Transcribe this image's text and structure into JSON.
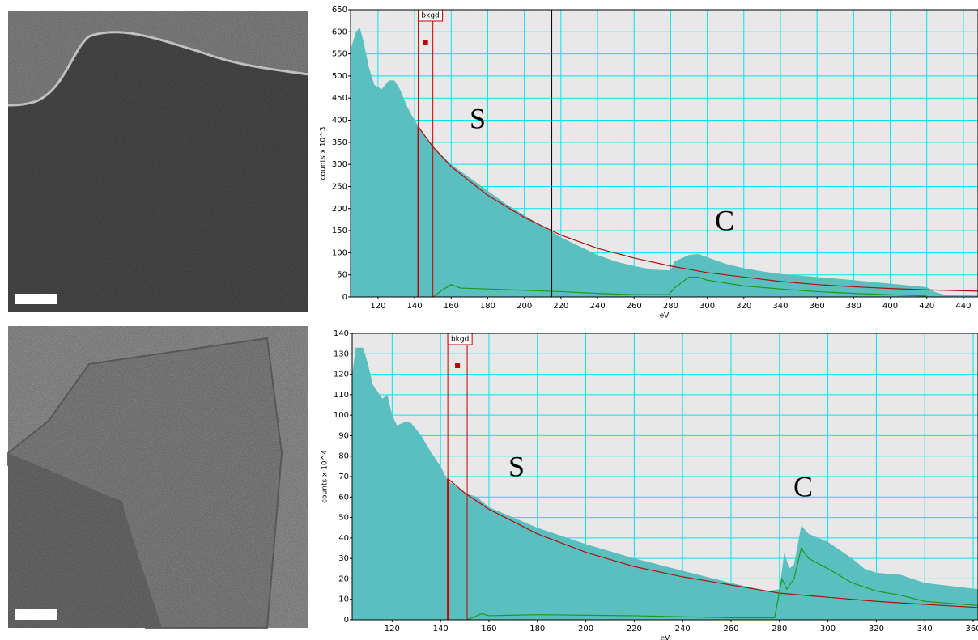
{
  "chart_data": [
    {
      "type": "area",
      "xlabel": "eV",
      "ylabel": "counts x 10^3",
      "xlim": [
        105,
        448
      ],
      "xticks": [
        120,
        140,
        160,
        180,
        200,
        220,
        240,
        260,
        280,
        300,
        320,
        340,
        360,
        380,
        400,
        420,
        440
      ],
      "ylim": [
        0,
        650
      ],
      "yticks": [
        0,
        50,
        100,
        150,
        200,
        250,
        300,
        350,
        400,
        450,
        500,
        550,
        600,
        650
      ],
      "grid": true,
      "bkgd_label": "bkgd",
      "bkgd_window": [
        142,
        150
      ],
      "cursor_x": 215,
      "annotations": [
        "S",
        "C"
      ],
      "series": [
        {
          "style": "area",
          "color": "#5bbfbf",
          "x": [
            105,
            108,
            110,
            112,
            115,
            118,
            122,
            126,
            129,
            132,
            136,
            140,
            145,
            150,
            155,
            160,
            170,
            180,
            190,
            200,
            210,
            220,
            230,
            240,
            250,
            260,
            270,
            280,
            282,
            290,
            295,
            300,
            310,
            320,
            330,
            340,
            360,
            380,
            400,
            420,
            425,
            430,
            448
          ],
          "values": [
            560,
            600,
            610,
            580,
            520,
            480,
            470,
            490,
            490,
            470,
            430,
            400,
            370,
            340,
            320,
            300,
            270,
            240,
            210,
            185,
            160,
            135,
            115,
            95,
            80,
            70,
            62,
            60,
            80,
            95,
            97,
            90,
            75,
            65,
            58,
            52,
            45,
            38,
            30,
            22,
            10,
            5,
            3
          ]
        },
        {
          "style": "line",
          "color": "#b01010",
          "x": [
            142,
            150,
            160,
            180,
            200,
            220,
            240,
            260,
            280,
            300,
            320,
            340,
            360,
            380,
            400,
            420,
            448
          ],
          "values": [
            385,
            340,
            295,
            230,
            180,
            140,
            110,
            88,
            70,
            55,
            45,
            35,
            28,
            23,
            19,
            16,
            13
          ]
        },
        {
          "style": "line",
          "color": "#1a9a1a",
          "x": [
            150,
            155,
            160,
            165,
            180,
            200,
            220,
            240,
            260,
            279,
            282,
            290,
            295,
            300,
            320,
            340,
            360,
            380,
            400,
            420
          ],
          "values": [
            0,
            15,
            28,
            20,
            18,
            15,
            12,
            8,
            5,
            5,
            20,
            45,
            45,
            38,
            25,
            18,
            12,
            8,
            5,
            2
          ]
        }
      ]
    },
    {
      "type": "area",
      "xlabel": "eV",
      "ylabel": "counts x 10^4",
      "xlim": [
        103.5,
        362
      ],
      "xticks": [
        120,
        140,
        160,
        180,
        200,
        220,
        240,
        260,
        280,
        300,
        320,
        340,
        360
      ],
      "ylim": [
        0,
        140
      ],
      "yticks": [
        0,
        10,
        20,
        30,
        40,
        50,
        60,
        70,
        80,
        90,
        100,
        110,
        120,
        130,
        140
      ],
      "grid": true,
      "bkgd_label": "bkgd",
      "bkgd_window": [
        143,
        151
      ],
      "annotations": [
        "S",
        "C"
      ],
      "series": [
        {
          "style": "area",
          "color": "#5bbfbf",
          "x": [
            103.5,
            105,
            108,
            110,
            112,
            116,
            118,
            120,
            122,
            126,
            128,
            132,
            136,
            140,
            143,
            150,
            155,
            160,
            180,
            200,
            220,
            240,
            260,
            275,
            280,
            282,
            284,
            286,
            289,
            292,
            300,
            310,
            315,
            320,
            330,
            340,
            362
          ],
          "values": [
            120,
            133,
            133,
            125,
            115,
            108,
            110,
            100,
            95,
            97,
            96,
            90,
            82,
            75,
            68,
            62,
            60,
            55,
            45,
            37,
            30,
            24,
            18,
            14,
            15,
            33,
            25,
            27,
            46,
            42,
            38,
            30,
            25,
            23,
            22,
            18,
            15
          ]
        },
        {
          "style": "line",
          "color": "#b01010",
          "x": [
            143,
            150,
            160,
            180,
            200,
            220,
            240,
            260,
            280,
            300,
            320,
            340,
            362
          ],
          "values": [
            69,
            62,
            54,
            42,
            33,
            26,
            21,
            17,
            13,
            11,
            9,
            7.5,
            6
          ]
        },
        {
          "style": "line",
          "color": "#1a9a1a",
          "x": [
            151,
            157,
            160,
            180,
            220,
            260,
            278,
            281,
            283,
            286,
            289,
            292,
            300,
            310,
            320,
            330,
            340,
            362
          ],
          "values": [
            0,
            3,
            2,
            2.5,
            2,
            1,
            1,
            20,
            15,
            20,
            35,
            30,
            25,
            18,
            14,
            12,
            9,
            7
          ]
        }
      ]
    }
  ]
}
